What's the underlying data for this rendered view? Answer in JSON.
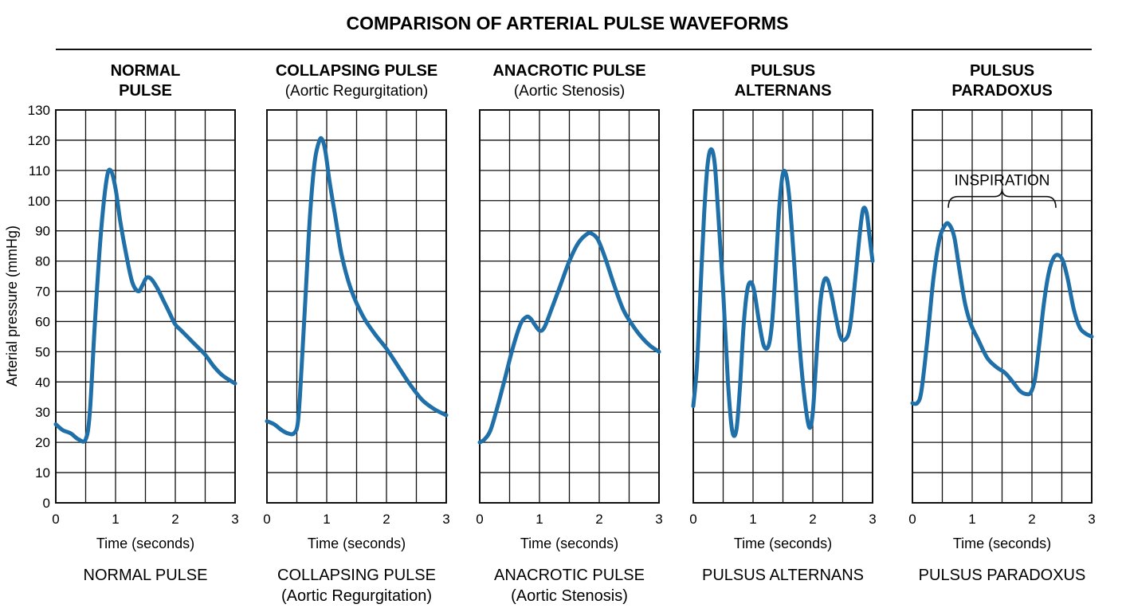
{
  "figure": {
    "title": "COMPARISON OF ARTERIAL PULSE WAVEFORMS",
    "line_color": "#1f6fa8",
    "ylabel": "Arterial pressure (mmHg)"
  },
  "chart_data": [
    {
      "type": "line",
      "title_lines": [
        "NORMAL",
        "PULSE"
      ],
      "subtitle": "",
      "caption_lines": [
        "NORMAL PULSE"
      ],
      "xlabel": "Time (seconds)",
      "ylabel": "Arterial pressure (mmHg)",
      "xlim": [
        0,
        3
      ],
      "ylim": [
        0,
        130
      ],
      "xticks": [
        0,
        1,
        2,
        3
      ],
      "yticks": [
        0,
        10,
        20,
        30,
        40,
        50,
        60,
        70,
        80,
        90,
        100,
        110,
        120,
        130
      ],
      "grid": true,
      "series": [
        {
          "x": [
            0,
            0.12,
            0.25,
            0.38,
            0.5,
            0.57,
            0.65,
            0.75,
            0.85,
            0.92,
            1.0,
            1.08,
            1.18,
            1.28,
            1.38,
            1.45,
            1.52,
            1.6,
            1.7,
            1.8,
            1.9,
            2.0,
            2.1,
            2.2,
            2.35,
            2.5,
            2.65,
            2.8,
            3.0
          ],
          "y": [
            26,
            24,
            23,
            21,
            21,
            30,
            58,
            88,
            107,
            110,
            104,
            93,
            82,
            73,
            70,
            72,
            74.5,
            74,
            71,
            67,
            63,
            59,
            57,
            55,
            52,
            49,
            45,
            42,
            39.5
          ]
        }
      ]
    },
    {
      "type": "line",
      "title_lines": [
        "COLLAPSING PULSE"
      ],
      "subtitle": "(Aortic Regurgitation)",
      "caption_lines": [
        "COLLAPSING PULSE",
        "(Aortic Regurgitation)"
      ],
      "xlabel": "Time (seconds)",
      "xlim": [
        0,
        3
      ],
      "ylim": [
        0,
        130
      ],
      "xticks": [
        0,
        1,
        2,
        3
      ],
      "grid": true,
      "series": [
        {
          "x": [
            0,
            0.12,
            0.25,
            0.35,
            0.45,
            0.52,
            0.58,
            0.65,
            0.72,
            0.8,
            0.88,
            0.93,
            0.98,
            1.05,
            1.15,
            1.25,
            1.4,
            1.6,
            1.8,
            2.0,
            2.2,
            2.4,
            2.6,
            2.8,
            3.0
          ],
          "y": [
            27,
            26,
            24,
            23,
            23,
            27,
            45,
            70,
            95,
            113,
            120,
            120,
            116,
            106,
            94,
            82,
            71,
            62,
            56,
            51,
            45,
            39,
            34,
            31,
            29
          ]
        }
      ]
    },
    {
      "type": "line",
      "title_lines": [
        "ANACROTIC PULSE"
      ],
      "subtitle": "(Aortic Stenosis)",
      "caption_lines": [
        "ANACROTIC PULSE",
        "(Aortic Stenosis)"
      ],
      "xlabel": "Time (seconds)",
      "xlim": [
        0,
        3
      ],
      "ylim": [
        0,
        130
      ],
      "xticks": [
        0,
        1,
        2,
        3
      ],
      "grid": true,
      "series": [
        {
          "x": [
            0,
            0.08,
            0.18,
            0.3,
            0.42,
            0.55,
            0.68,
            0.78,
            0.85,
            0.92,
            1.0,
            1.08,
            1.2,
            1.35,
            1.5,
            1.65,
            1.8,
            1.88,
            1.98,
            2.1,
            2.25,
            2.4,
            2.55,
            2.7,
            2.85,
            3.0
          ],
          "y": [
            20,
            21,
            24,
            32,
            41,
            51,
            59,
            61.5,
            61,
            59,
            57,
            58,
            64,
            72,
            80,
            86,
            89,
            89,
            87,
            81,
            72,
            64,
            59,
            55,
            52,
            50
          ]
        }
      ]
    },
    {
      "type": "line",
      "title_lines": [
        "PULSUS",
        "ALTERNANS"
      ],
      "subtitle": "",
      "caption_lines": [
        "PULSUS ALTERNANS"
      ],
      "xlabel": "Time (seconds)",
      "xlim": [
        0,
        3
      ],
      "ylim": [
        0,
        130
      ],
      "xticks": [
        0,
        1,
        2,
        3
      ],
      "grid": true,
      "series": [
        {
          "x": [
            0,
            0.06,
            0.12,
            0.18,
            0.24,
            0.3,
            0.36,
            0.42,
            0.5,
            0.58,
            0.65,
            0.72,
            0.78,
            0.84,
            0.9,
            0.96,
            1.02,
            1.1,
            1.18,
            1.26,
            1.32,
            1.38,
            1.44,
            1.5,
            1.56,
            1.62,
            1.7,
            1.78,
            1.86,
            1.94,
            2.0,
            2.06,
            2.12,
            2.18,
            2.24,
            2.3,
            2.38,
            2.46,
            2.54,
            2.62,
            2.7,
            2.78,
            2.84,
            2.9,
            2.95,
            3.0
          ],
          "y": [
            32,
            45,
            70,
            95,
            112,
            117,
            112,
            95,
            70,
            40,
            24,
            24,
            38,
            58,
            70,
            73,
            70,
            60,
            52,
            52,
            60,
            78,
            98,
            109,
            108,
            98,
            76,
            52,
            35,
            25,
            30,
            48,
            65,
            73,
            74,
            70,
            62,
            55,
            54,
            58,
            72,
            88,
            97,
            96,
            88,
            80
          ]
        }
      ]
    },
    {
      "type": "line",
      "title_lines": [
        "PULSUS",
        "PARADOXUS"
      ],
      "subtitle": "",
      "caption_lines": [
        "PULSUS PARADOXUS"
      ],
      "xlabel": "Time (seconds)",
      "xlim": [
        0,
        3
      ],
      "ylim": [
        0,
        130
      ],
      "xticks": [
        0,
        1,
        2,
        3
      ],
      "grid": true,
      "annotation": {
        "text": "INSPIRATION",
        "x_range": [
          0.6,
          2.4
        ],
        "y": 95
      },
      "series": [
        {
          "x": [
            0,
            0.08,
            0.15,
            0.25,
            0.35,
            0.45,
            0.55,
            0.62,
            0.7,
            0.78,
            0.88,
            0.98,
            1.1,
            1.25,
            1.4,
            1.55,
            1.68,
            1.8,
            1.9,
            1.98,
            2.05,
            2.12,
            2.2,
            2.28,
            2.36,
            2.44,
            2.52,
            2.6,
            2.7,
            2.8,
            2.9,
            3.0
          ],
          "y": [
            33,
            33,
            37,
            54,
            74,
            87,
            92,
            92,
            88,
            78,
            66,
            59,
            54,
            48,
            45,
            43,
            40,
            37,
            36,
            36.5,
            41,
            52,
            66,
            76,
            81,
            82,
            80,
            74,
            64,
            58,
            56,
            55
          ]
        }
      ]
    }
  ]
}
